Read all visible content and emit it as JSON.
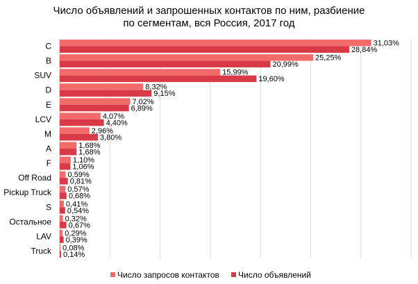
{
  "chart_data": {
    "type": "bar",
    "orientation": "horizontal",
    "title_lines": [
      "Число объявлений и запрошенных контактов по ним, разбиение",
      "по сегментам, вся Россия, 2017 год"
    ],
    "categories": [
      "C",
      "B",
      "SUV",
      "D",
      "E",
      "LCV",
      "M",
      "A",
      "F",
      "Off Road",
      "Pickup Truck",
      "S",
      "Остальное",
      "LAV",
      "Truck"
    ],
    "series": [
      {
        "name": "Число запросов контактов",
        "color": "#f26b6b",
        "values": [
          31.03,
          25.25,
          15.99,
          8.32,
          7.02,
          4.07,
          2.96,
          1.68,
          1.1,
          0.59,
          0.57,
          0.41,
          0.32,
          0.29,
          0.08
        ],
        "labels": [
          "31,03%",
          "25,25%",
          "15,99%",
          "8,32%",
          "7,02%",
          "4,07%",
          "2,96%",
          "1,68%",
          "1,10%",
          "0,59%",
          "0,57%",
          "0,41%",
          "0,32%",
          "0,29%",
          "0,08%"
        ]
      },
      {
        "name": "Число объявлений",
        "color": "#d93a47",
        "values": [
          28.84,
          20.99,
          19.6,
          9.15,
          6.89,
          4.4,
          3.8,
          1.68,
          1.06,
          0.81,
          0.68,
          0.54,
          0.67,
          0.39,
          0.14
        ],
        "labels": [
          "28,84%",
          "20,99%",
          "19,60%",
          "9,15%",
          "6,89%",
          "4,40%",
          "3,80%",
          "1,68%",
          "1,06%",
          "0,81%",
          "0,68%",
          "0,54%",
          "0,67%",
          "0,39%",
          "0,14%"
        ]
      }
    ],
    "xlim": [
      0,
      35
    ],
    "x_gridlines": true,
    "legend": "bottom"
  }
}
